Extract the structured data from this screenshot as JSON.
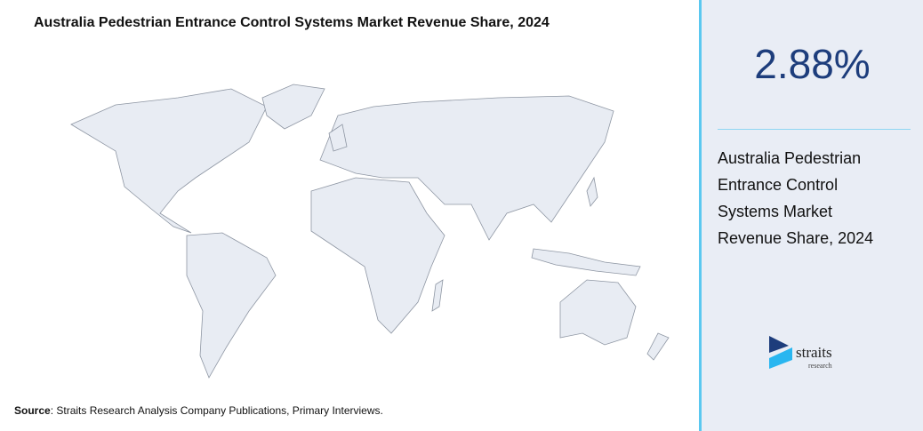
{
  "header": {
    "title": "Australia Pedestrian Entrance Control Systems Market Revenue Share, 2024"
  },
  "stat": {
    "value": "2.88%",
    "label": "Australia Pedestrian Entrance Control Systems Market Revenue Share, 2024"
  },
  "source": {
    "label": "Source",
    "text": ": Straits Research Analysis Company Publications, Primary Interviews."
  },
  "logo": {
    "name": "straits",
    "sub": "research"
  }
}
